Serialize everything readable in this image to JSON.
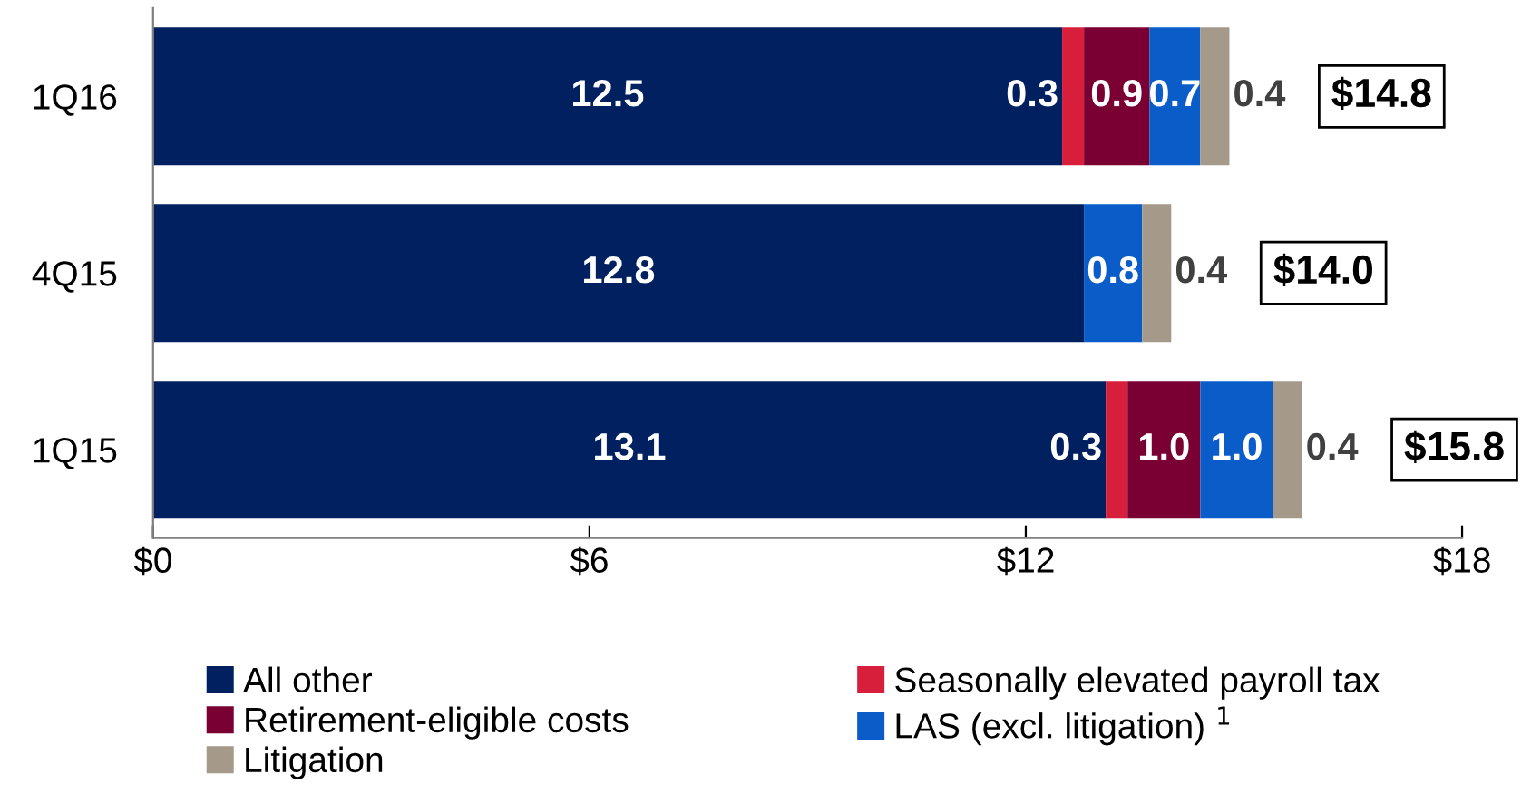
{
  "chart_data": {
    "type": "bar",
    "orientation": "horizontal",
    "stacked": true,
    "categories": [
      "1Q16",
      "4Q15",
      "1Q15"
    ],
    "series": [
      {
        "name": "All other",
        "color": "#002060",
        "values": [
          12.5,
          12.8,
          13.1
        ],
        "value_labels": [
          "12.5",
          "12.8",
          "13.1"
        ]
      },
      {
        "name": "Seasonally elevated payroll tax",
        "color": "#d71f3c",
        "values": [
          0.3,
          null,
          0.3
        ],
        "value_labels": [
          "0.3",
          null,
          "0.3"
        ]
      },
      {
        "name": "Retirement-eligible costs",
        "color": "#7a0033",
        "values": [
          0.9,
          null,
          1.0
        ],
        "value_labels": [
          "0.9",
          null,
          "1.0"
        ]
      },
      {
        "name": "LAS (excl. litigation) $^{1}$",
        "color": "#0a5cc9",
        "values": [
          0.7,
          0.8,
          1.0
        ],
        "value_labels": [
          "0.7",
          "0.8",
          "1.0"
        ]
      },
      {
        "name": "Litigation",
        "color": "#a59a8a",
        "values": [
          0.4,
          0.4,
          0.4
        ],
        "value_labels": [
          "0.4",
          "0.4",
          "0.4"
        ]
      }
    ],
    "totals": [
      "$14.8",
      "$14.0",
      "$15.8"
    ],
    "xlim": [
      0,
      18
    ],
    "xticks": [
      {
        "value": 0,
        "label": "$0"
      },
      {
        "value": 6,
        "label": "$6"
      },
      {
        "value": 12,
        "label": "$12"
      },
      {
        "value": 18,
        "label": "$18"
      }
    ],
    "grid": false,
    "legend": "bottom"
  }
}
